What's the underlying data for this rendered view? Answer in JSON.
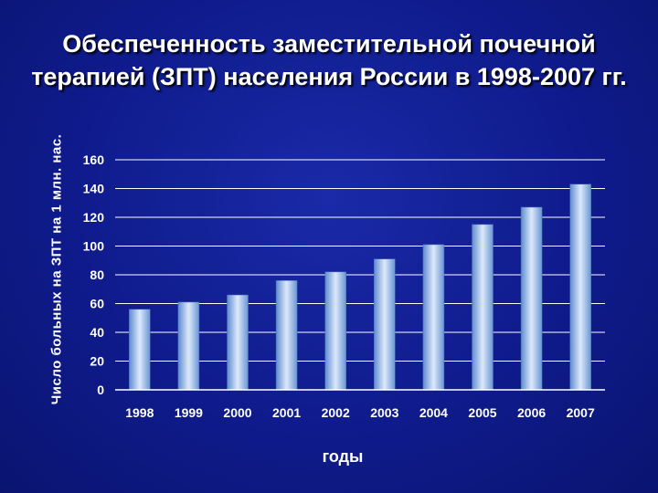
{
  "slide": {
    "title_line1": "Обеспеченность заместительной почечной",
    "title_line2": "терапией (ЗПТ) населения России в 1998-2007 гг."
  },
  "chart_data": {
    "type": "bar",
    "title": "Обеспеченность заместительной почечной терапией (ЗПТ) населения России в 1998-2007 гг.",
    "xlabel": "годы",
    "ylabel": "Число больных на ЗПТ на 1 млн. нас.",
    "categories": [
      "1998",
      "1999",
      "2000",
      "2001",
      "2002",
      "2003",
      "2004",
      "2005",
      "2006",
      "2007"
    ],
    "values": [
      56,
      61,
      66,
      76,
      82,
      91,
      101,
      115,
      127,
      143
    ],
    "ylim": [
      0,
      160
    ],
    "yticks": [
      0,
      20,
      40,
      60,
      80,
      100,
      120,
      140,
      160
    ],
    "grid": true,
    "legend": "none",
    "colors": {
      "bar_light": "#dce8fa",
      "bar_dark": "#6d98d6",
      "grid": "#ffffff",
      "text": "#ffffff",
      "background": "#0f1b8c"
    }
  }
}
